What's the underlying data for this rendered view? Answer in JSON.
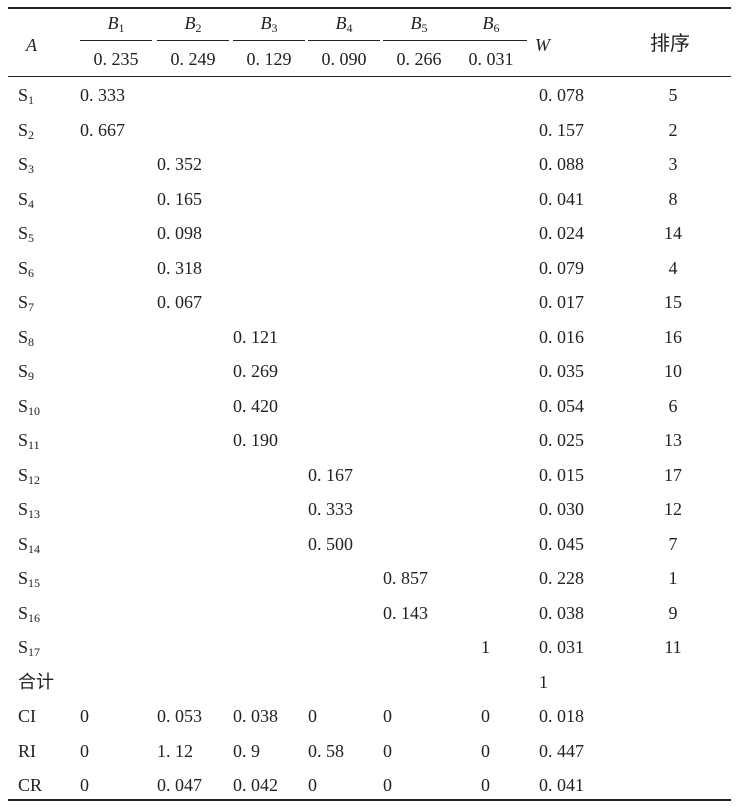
{
  "header": {
    "a": "A",
    "criteria": [
      {
        "label": "B",
        "sub": "1",
        "weight": "0. 235"
      },
      {
        "label": "B",
        "sub": "2",
        "weight": "0. 249"
      },
      {
        "label": "B",
        "sub": "3",
        "weight": "0. 129"
      },
      {
        "label": "B",
        "sub": "4",
        "weight": "0. 090"
      },
      {
        "label": "B",
        "sub": "5",
        "weight": "0. 266"
      },
      {
        "label": "B",
        "sub": "6",
        "weight": "0. 031"
      }
    ],
    "w": "W",
    "rank": "排序"
  },
  "rows": [
    {
      "label": "S",
      "sub": "1",
      "vals": [
        "0. 333",
        "",
        "",
        "",
        "",
        ""
      ],
      "w": "0. 078",
      "rank": "5"
    },
    {
      "label": "S",
      "sub": "2",
      "vals": [
        "0. 667",
        "",
        "",
        "",
        "",
        ""
      ],
      "w": "0. 157",
      "rank": "2"
    },
    {
      "label": "S",
      "sub": "3",
      "vals": [
        "",
        "0. 352",
        "",
        "",
        "",
        ""
      ],
      "w": "0. 088",
      "rank": "3"
    },
    {
      "label": "S",
      "sub": "4",
      "vals": [
        "",
        "0. 165",
        "",
        "",
        "",
        ""
      ],
      "w": "0. 041",
      "rank": "8"
    },
    {
      "label": "S",
      "sub": "5",
      "vals": [
        "",
        "0. 098",
        "",
        "",
        "",
        ""
      ],
      "w": "0. 024",
      "rank": "14"
    },
    {
      "label": "S",
      "sub": "6",
      "vals": [
        "",
        "0. 318",
        "",
        "",
        "",
        ""
      ],
      "w": "0. 079",
      "rank": "4"
    },
    {
      "label": "S",
      "sub": "7",
      "vals": [
        "",
        "0. 067",
        "",
        "",
        "",
        ""
      ],
      "w": "0. 017",
      "rank": "15"
    },
    {
      "label": "S",
      "sub": "8",
      "vals": [
        "",
        "",
        "0. 121",
        "",
        "",
        ""
      ],
      "w": "0. 016",
      "rank": "16"
    },
    {
      "label": "S",
      "sub": "9",
      "vals": [
        "",
        "",
        "0. 269",
        "",
        "",
        ""
      ],
      "w": "0. 035",
      "rank": "10"
    },
    {
      "label": "S",
      "sub": "10",
      "vals": [
        "",
        "",
        "0. 420",
        "",
        "",
        ""
      ],
      "w": "0. 054",
      "rank": "6"
    },
    {
      "label": "S",
      "sub": "11",
      "vals": [
        "",
        "",
        "0. 190",
        "",
        "",
        ""
      ],
      "w": "0. 025",
      "rank": "13"
    },
    {
      "label": "S",
      "sub": "12",
      "vals": [
        "",
        "",
        "",
        "0. 167",
        "",
        ""
      ],
      "w": "0. 015",
      "rank": "17"
    },
    {
      "label": "S",
      "sub": "13",
      "vals": [
        "",
        "",
        "",
        "0. 333",
        "",
        ""
      ],
      "w": "0. 030",
      "rank": "12"
    },
    {
      "label": "S",
      "sub": "14",
      "vals": [
        "",
        "",
        "",
        "0. 500",
        "",
        ""
      ],
      "w": "0. 045",
      "rank": "7"
    },
    {
      "label": "S",
      "sub": "15",
      "vals": [
        "",
        "",
        "",
        "",
        "0. 857",
        ""
      ],
      "w": "0. 228",
      "rank": "1"
    },
    {
      "label": "S",
      "sub": "16",
      "vals": [
        "",
        "",
        "",
        "",
        "0. 143",
        ""
      ],
      "w": "0. 038",
      "rank": "9"
    },
    {
      "label": "S",
      "sub": "17",
      "vals": [
        "",
        "",
        "",
        "",
        "",
        "1"
      ],
      "w": "0. 031",
      "rank": "11"
    },
    {
      "label": "合计",
      "sub": "",
      "vals": [
        "",
        "",
        "",
        "",
        "",
        ""
      ],
      "w": "1",
      "rank": ""
    },
    {
      "label": "CI",
      "sub": "",
      "vals": [
        "0",
        "0. 053",
        "0. 038",
        "0",
        "0",
        "0"
      ],
      "w": "0. 018",
      "rank": ""
    },
    {
      "label": "RI",
      "sub": "",
      "vals": [
        "0",
        "1. 12",
        "0. 9",
        "0. 58",
        "0",
        "0"
      ],
      "w": "0. 447",
      "rank": ""
    },
    {
      "label": "CR",
      "sub": "",
      "vals": [
        "0",
        "0. 047",
        "0. 042",
        "0",
        "0",
        "0"
      ],
      "w": "0. 041",
      "rank": ""
    }
  ]
}
